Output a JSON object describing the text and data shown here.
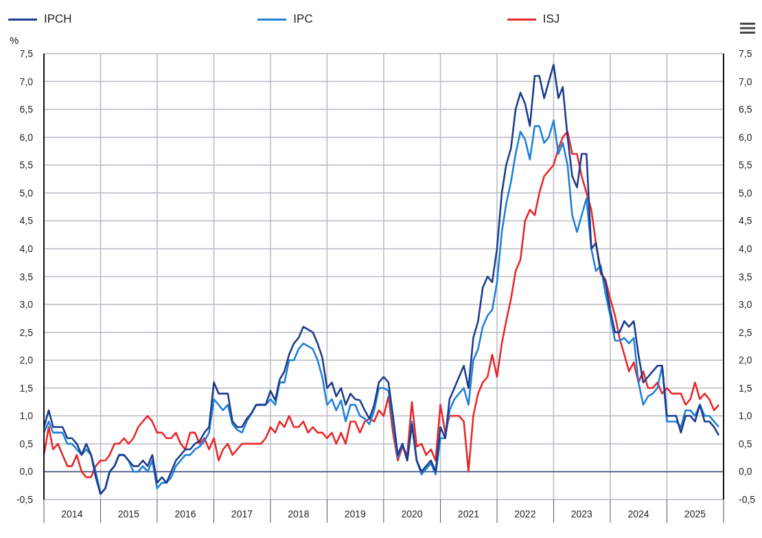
{
  "chart_data": {
    "type": "line",
    "ylabel": "%",
    "legend": "top",
    "grid": true,
    "marker": "none",
    "line_style": "solid",
    "x": [
      "2014-01",
      "2014-02",
      "2014-03",
      "2014-04",
      "2014-05",
      "2014-06",
      "2014-07",
      "2014-08",
      "2014-09",
      "2014-10",
      "2014-11",
      "2014-12",
      "2015-01",
      "2015-02",
      "2015-03",
      "2015-04",
      "2015-05",
      "2015-06",
      "2015-07",
      "2015-08",
      "2015-09",
      "2015-10",
      "2015-11",
      "2015-12",
      "2016-01",
      "2016-02",
      "2016-03",
      "2016-04",
      "2016-05",
      "2016-06",
      "2016-07",
      "2016-08",
      "2016-09",
      "2016-10",
      "2016-11",
      "2016-12",
      "2017-01",
      "2017-02",
      "2017-03",
      "2017-04",
      "2017-05",
      "2017-06",
      "2017-07",
      "2017-08",
      "2017-09",
      "2017-10",
      "2017-11",
      "2017-12",
      "2018-01",
      "2018-02",
      "2018-03",
      "2018-04",
      "2018-05",
      "2018-06",
      "2018-07",
      "2018-08",
      "2018-09",
      "2018-10",
      "2018-11",
      "2018-12",
      "2019-01",
      "2019-02",
      "2019-03",
      "2019-04",
      "2019-05",
      "2019-06",
      "2019-07",
      "2019-08",
      "2019-09",
      "2019-10",
      "2019-11",
      "2019-12",
      "2020-01",
      "2020-02",
      "2020-03",
      "2020-04",
      "2020-05",
      "2020-06",
      "2020-07",
      "2020-08",
      "2020-09",
      "2020-10",
      "2020-11",
      "2020-12",
      "2021-01",
      "2021-02",
      "2021-03",
      "2021-04",
      "2021-05",
      "2021-06",
      "2021-07",
      "2021-08",
      "2021-09",
      "2021-10",
      "2021-11",
      "2021-12",
      "2022-01",
      "2022-02",
      "2022-03",
      "2022-04",
      "2022-05",
      "2022-06",
      "2022-07",
      "2022-08",
      "2022-09",
      "2022-10",
      "2022-11",
      "2022-12",
      "2023-01",
      "2023-02",
      "2023-03",
      "2023-04",
      "2023-05",
      "2023-06",
      "2023-07",
      "2023-08",
      "2023-09",
      "2023-10",
      "2023-11",
      "2023-12",
      "2024-01",
      "2024-02",
      "2024-03",
      "2024-04",
      "2024-05",
      "2024-06",
      "2024-07",
      "2024-08",
      "2024-09",
      "2024-10",
      "2024-11",
      "2024-12",
      "2025-01",
      "2025-02",
      "2025-03",
      "2025-04",
      "2025-05",
      "2025-06",
      "2025-07",
      "2025-08",
      "2025-09",
      "2025-10",
      "2025-11",
      "2025-12"
    ],
    "series": [
      {
        "name": "ISJ",
        "color": "#e8272a",
        "values": [
          0.3,
          0.8,
          0.4,
          0.5,
          0.3,
          0.1,
          0.1,
          0.3,
          0.0,
          -0.1,
          -0.1,
          0.1,
          0.2,
          0.2,
          0.3,
          0.5,
          0.5,
          0.6,
          0.5,
          0.6,
          0.8,
          0.9,
          1.0,
          0.9,
          0.7,
          0.7,
          0.6,
          0.6,
          0.7,
          0.5,
          0.4,
          0.7,
          0.7,
          0.5,
          0.6,
          0.4,
          0.6,
          0.2,
          0.4,
          0.5,
          0.3,
          0.4,
          0.5,
          0.5,
          0.5,
          0.5,
          0.5,
          0.6,
          0.8,
          0.7,
          0.9,
          0.8,
          1.0,
          0.8,
          0.8,
          0.9,
          0.7,
          0.8,
          0.7,
          0.7,
          0.6,
          0.7,
          0.5,
          0.7,
          0.5,
          0.9,
          0.9,
          0.7,
          0.9,
          0.95,
          0.9,
          1.1,
          1.0,
          1.35,
          0.7,
          0.2,
          0.45,
          0.3,
          1.25,
          0.45,
          0.5,
          0.3,
          0.4,
          0.2,
          1.2,
          0.7,
          1.0,
          1.0,
          1.0,
          0.9,
          0.0,
          1.0,
          1.4,
          1.6,
          1.7,
          2.1,
          1.7,
          2.3,
          2.7,
          3.1,
          3.6,
          3.8,
          4.5,
          4.7,
          4.6,
          5.0,
          5.3,
          5.4,
          5.5,
          5.8,
          6.0,
          6.1,
          5.7,
          5.7,
          5.3,
          5.0,
          4.7,
          4.1,
          3.55,
          3.45,
          3.1,
          2.8,
          2.4,
          2.1,
          1.8,
          1.96,
          1.6,
          1.8,
          1.5,
          1.5,
          1.6,
          1.4,
          1.5,
          1.4,
          1.4,
          1.4,
          1.2,
          1.3,
          1.6,
          1.3,
          1.4,
          1.3,
          1.1,
          1.2
        ]
      },
      {
        "name": "IPC",
        "color": "#1e80d8",
        "values": [
          0.7,
          0.9,
          0.7,
          0.7,
          0.7,
          0.5,
          0.5,
          0.4,
          0.3,
          0.4,
          0.3,
          0.0,
          -0.4,
          -0.3,
          0.0,
          0.1,
          0.3,
          0.3,
          0.2,
          0.0,
          0.0,
          0.1,
          0.0,
          0.2,
          -0.3,
          -0.2,
          -0.2,
          -0.1,
          0.1,
          0.2,
          0.3,
          0.3,
          0.4,
          0.45,
          0.55,
          0.7,
          1.3,
          1.2,
          1.1,
          1.2,
          0.85,
          0.75,
          0.7,
          0.9,
          1.05,
          1.2,
          1.2,
          1.2,
          1.3,
          1.2,
          1.6,
          1.6,
          2.0,
          2.0,
          2.2,
          2.3,
          2.25,
          2.2,
          2.0,
          1.7,
          1.2,
          1.3,
          1.1,
          1.28,
          0.9,
          1.2,
          1.2,
          1.0,
          0.95,
          0.85,
          1.1,
          1.5,
          1.5,
          1.45,
          0.9,
          0.25,
          0.5,
          0.2,
          0.9,
          0.2,
          -0.05,
          0.05,
          0.15,
          -0.05,
          0.6,
          0.6,
          1.1,
          1.3,
          1.4,
          1.5,
          1.2,
          2.0,
          2.2,
          2.6,
          2.8,
          2.9,
          3.4,
          4.3,
          4.8,
          5.2,
          5.7,
          6.1,
          5.96,
          5.6,
          6.2,
          6.2,
          5.9,
          6.0,
          6.3,
          5.7,
          5.9,
          5.5,
          4.6,
          4.3,
          4.6,
          4.9,
          4.0,
          3.6,
          3.7,
          3.2,
          2.8,
          2.35,
          2.35,
          2.4,
          2.3,
          2.4,
          1.6,
          1.2,
          1.35,
          1.4,
          1.5,
          1.9,
          0.9,
          0.9,
          0.9,
          0.8,
          1.1,
          1.1,
          1.0,
          1.2,
          1.0,
          1.0,
          0.9,
          0.8
        ]
      },
      {
        "name": "IPCH",
        "color": "#1d3c8c",
        "values": [
          0.8,
          1.1,
          0.8,
          0.8,
          0.8,
          0.6,
          0.6,
          0.5,
          0.3,
          0.5,
          0.3,
          -0.1,
          -0.4,
          -0.3,
          0.0,
          0.1,
          0.3,
          0.3,
          0.2,
          0.1,
          0.1,
          0.2,
          0.1,
          0.3,
          -0.2,
          -0.1,
          -0.2,
          0.0,
          0.2,
          0.3,
          0.4,
          0.4,
          0.5,
          0.55,
          0.7,
          0.8,
          1.6,
          1.4,
          1.4,
          1.4,
          0.9,
          0.8,
          0.8,
          0.95,
          1.05,
          1.2,
          1.2,
          1.2,
          1.45,
          1.28,
          1.65,
          1.8,
          2.1,
          2.3,
          2.4,
          2.6,
          2.55,
          2.5,
          2.3,
          2.05,
          1.5,
          1.6,
          1.35,
          1.5,
          1.2,
          1.4,
          1.3,
          1.28,
          1.1,
          0.95,
          1.2,
          1.6,
          1.7,
          1.6,
          1.0,
          0.3,
          0.5,
          0.2,
          0.85,
          0.2,
          0.0,
          0.1,
          0.2,
          0.0,
          0.8,
          0.6,
          1.3,
          1.5,
          1.7,
          1.9,
          1.5,
          2.4,
          2.7,
          3.3,
          3.5,
          3.4,
          4.0,
          5.0,
          5.5,
          5.8,
          6.5,
          6.8,
          6.6,
          6.2,
          7.1,
          7.1,
          6.7,
          7.0,
          7.3,
          6.7,
          6.9,
          6.0,
          5.3,
          5.1,
          5.7,
          5.7,
          4.0,
          4.1,
          3.6,
          3.4,
          2.9,
          2.5,
          2.5,
          2.7,
          2.6,
          2.7,
          2.1,
          1.6,
          1.7,
          1.8,
          1.9,
          1.9,
          1.0,
          1.0,
          1.0,
          0.7,
          1.0,
          1.0,
          0.9,
          1.2,
          0.9,
          0.9,
          0.8,
          0.65
        ]
      }
    ],
    "xlim": [
      "2014-01",
      "2026-01"
    ],
    "xticks": [
      {
        "value": "2014-01",
        "label": null
      },
      {
        "value": "2014-07",
        "label": "2014"
      },
      {
        "value": "2015-01",
        "label": null
      },
      {
        "value": "2015-07",
        "label": "2015"
      },
      {
        "value": "2016-01",
        "label": null
      },
      {
        "value": "2016-07",
        "label": "2016"
      },
      {
        "value": "2017-01",
        "label": null
      },
      {
        "value": "2017-07",
        "label": "2017"
      },
      {
        "value": "2018-01",
        "label": null
      },
      {
        "value": "2018-07",
        "label": "2018"
      },
      {
        "value": "2019-01",
        "label": null
      },
      {
        "value": "2019-07",
        "label": "2019"
      },
      {
        "value": "2020-01",
        "label": null
      },
      {
        "value": "2020-07",
        "label": "2020"
      },
      {
        "value": "2021-01",
        "label": null
      },
      {
        "value": "2021-07",
        "label": "2021"
      },
      {
        "value": "2022-01",
        "label": null
      },
      {
        "value": "2022-07",
        "label": "2022"
      },
      {
        "value": "2023-01",
        "label": null
      },
      {
        "value": "2023-07",
        "label": "2023"
      },
      {
        "value": "2024-01",
        "label": null
      },
      {
        "value": "2024-07",
        "label": "2024"
      },
      {
        "value": "2025-01",
        "label": null
      },
      {
        "value": "2025-07",
        "label": "2025"
      },
      {
        "value": "2026-01",
        "label": null
      }
    ],
    "ylim": [
      -0.5,
      7.5
    ],
    "yticks": [
      {
        "value": -0.5,
        "label": "-0,5"
      },
      {
        "value": 0,
        "label": "0,0"
      },
      {
        "value": 0.5,
        "label": "0,5"
      },
      {
        "value": 1,
        "label": "1,0"
      },
      {
        "value": 1.5,
        "label": "1,5"
      },
      {
        "value": 2,
        "label": "2,0"
      },
      {
        "value": 2.5,
        "label": "2,5"
      },
      {
        "value": 3,
        "label": "3,0"
      },
      {
        "value": 3.5,
        "label": "3,5"
      },
      {
        "value": 4,
        "label": "4,0"
      },
      {
        "value": 4.5,
        "label": "4,5"
      },
      {
        "value": 5,
        "label": "5,0"
      },
      {
        "value": 5.5,
        "label": "5,5"
      },
      {
        "value": 6,
        "label": "6,0"
      },
      {
        "value": 6.5,
        "label": "6,5"
      },
      {
        "value": 7,
        "label": "7,0"
      },
      {
        "value": 7.5,
        "label": "7,5"
      }
    ],
    "y2lim": [
      -0.5,
      7.5
    ],
    "y2ticks": [
      {
        "value": -0.5,
        "label": "-0,5"
      },
      {
        "value": 0,
        "label": "0,0"
      },
      {
        "value": 0.5,
        "label": "0,5"
      },
      {
        "value": 1,
        "label": "1,0"
      },
      {
        "value": 1.5,
        "label": "1,5"
      },
      {
        "value": 2,
        "label": "2,0"
      },
      {
        "value": 2.5,
        "label": "2,5"
      },
      {
        "value": 3,
        "label": "3,0"
      },
      {
        "value": 3.5,
        "label": "3,5"
      },
      {
        "value": 4,
        "label": "4,0"
      },
      {
        "value": 4.5,
        "label": "4,5"
      },
      {
        "value": 5,
        "label": "5,0"
      },
      {
        "value": 5.5,
        "label": "5,5"
      },
      {
        "value": 6,
        "label": "6,0"
      },
      {
        "value": 6.5,
        "label": "6,5"
      },
      {
        "value": 7,
        "label": "7,0"
      },
      {
        "value": 7.5,
        "label": "7,5"
      }
    ],
    "ref_lines": [
      {
        "axis": "y",
        "value": 0,
        "color": "#34497a"
      }
    ]
  }
}
